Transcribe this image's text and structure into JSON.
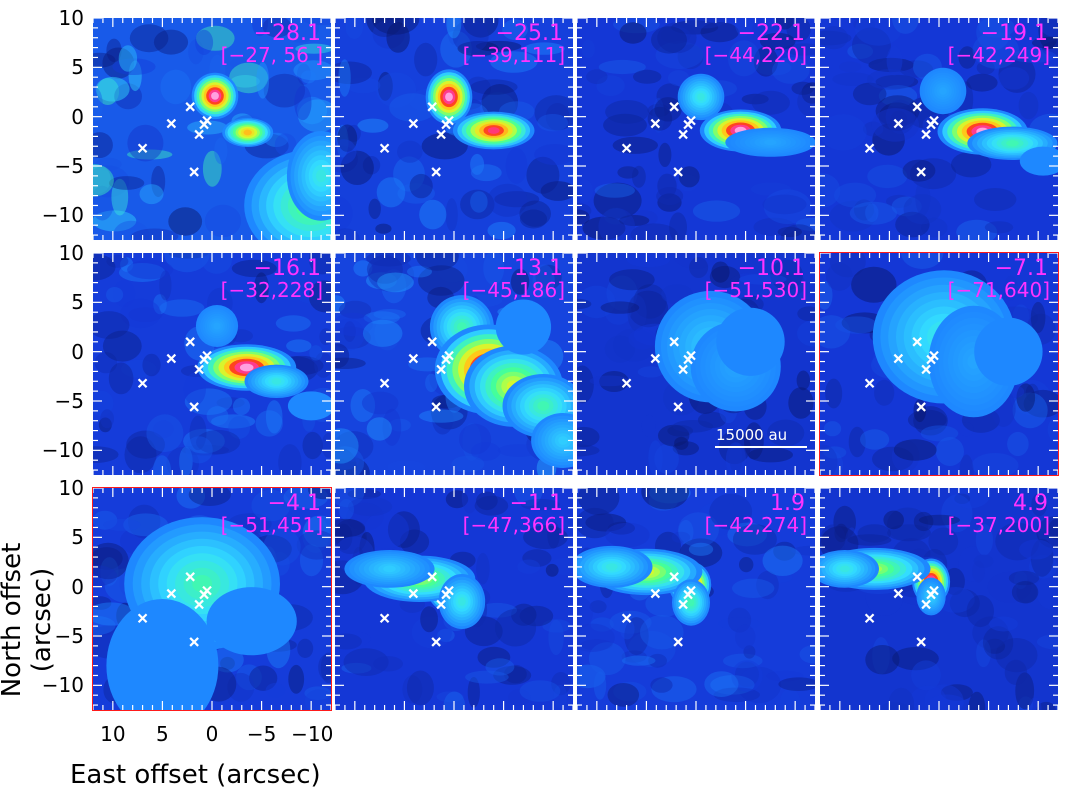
{
  "chart_data": {
    "type": "heatmap",
    "description_layout": "3x4 grid of channel maps",
    "axes": {
      "ylabel": "North offset (arcsec)",
      "xlabel": "East offset (arcsec)",
      "xlim": [
        12,
        -12
      ],
      "ylim": [
        -12.5,
        10
      ],
      "yticks": [
        "10",
        "5",
        "0",
        "−5",
        "−10",
        "10",
        "5",
        "0",
        "−5",
        "−10",
        "10",
        "5",
        "0",
        "−5",
        "−10"
      ],
      "xticks": [
        "10",
        "5",
        "0",
        "−5",
        "−10"
      ]
    },
    "scale_bar": "15000 au",
    "colormap": [
      "#000000",
      "#0a1a7a",
      "#1438d8",
      "#1e88ff",
      "#33ddff",
      "#44ff99",
      "#ccff33",
      "#ffd21a",
      "#ff3020",
      "#ff40c0",
      "#ffffff"
    ],
    "sources": [
      [
        2.2,
        1.0
      ],
      [
        4.1,
        -0.7
      ],
      [
        0.5,
        -0.4
      ],
      [
        0.8,
        -0.8
      ],
      [
        1.3,
        -1.8
      ],
      [
        7.0,
        -3.2
      ],
      [
        1.8,
        -5.6
      ]
    ],
    "panels": [
      {
        "velocity": "−28.1",
        "range": "[−27, 56 ]",
        "highlight": false,
        "features": [
          [
            -0.3,
            2.1,
            1.0,
            1.0,
            1.0
          ],
          [
            -3.6,
            -1.6,
            1.1,
            0.6,
            0.75
          ],
          [
            -10,
            -9,
            3,
            2.5,
            0.55
          ],
          [
            -11,
            -6,
            1.5,
            2,
            0.45
          ]
        ],
        "noise": 0.33
      },
      {
        "velocity": "−25.1",
        "range": "[−39,111]",
        "highlight": false,
        "features": [
          [
            0.5,
            2.0,
            1.0,
            1.2,
            1.0
          ],
          [
            -4.0,
            -1.4,
            1.8,
            0.8,
            0.9
          ]
        ],
        "noise": 0.2
      },
      {
        "velocity": "−22.1",
        "range": "[−44,220]",
        "highlight": false,
        "features": [
          [
            -0.5,
            2.0,
            1.0,
            1.0,
            0.45
          ],
          [
            -4.5,
            -1.4,
            1.8,
            0.9,
            1.0
          ],
          [
            -7.5,
            -2.6,
            2.0,
            0.6,
            0.35
          ]
        ],
        "noise": 0.15
      },
      {
        "velocity": "−19.1",
        "range": "[−42,249]",
        "highlight": false,
        "features": [
          [
            -0.4,
            2.6,
            1.0,
            1.0,
            0.35
          ],
          [
            -4.4,
            -1.5,
            2.0,
            1.0,
            1.0
          ],
          [
            -7.4,
            -2.7,
            2.0,
            0.7,
            0.5
          ],
          [
            -10.5,
            -4.5,
            1.0,
            0.6,
            0.3
          ]
        ],
        "noise": 0.15
      },
      {
        "velocity": "−16.1",
        "range": "[−32,228]",
        "highlight": false,
        "features": [
          [
            -0.5,
            2.6,
            0.9,
            0.9,
            0.35
          ],
          [
            -3.5,
            -1.6,
            2.2,
            1.0,
            1.0
          ],
          [
            -6.5,
            -3.0,
            1.4,
            0.7,
            0.45
          ],
          [
            -10,
            -5.5,
            1.0,
            0.6,
            0.3
          ]
        ],
        "noise": 0.18
      },
      {
        "velocity": "−13.1",
        "range": "[−45,186]",
        "highlight": false,
        "features": [
          [
            -0.8,
            2.5,
            1.4,
            1.4,
            0.5
          ],
          [
            -3.5,
            -1.8,
            2.4,
            2.0,
            1.0
          ],
          [
            -6,
            -3.5,
            2.2,
            1.8,
            0.65
          ],
          [
            -9,
            -5.5,
            1.8,
            1.4,
            0.5
          ],
          [
            -11,
            -9,
            1.4,
            1.2,
            0.4
          ],
          [
            -7,
            2.5,
            1.2,
            1.2,
            0.3
          ]
        ],
        "noise": 0.22
      },
      {
        "velocity": "−10.1",
        "range": "[−51,530]",
        "highlight": false,
        "features": [
          [
            0.6,
            -0.5,
            0.8,
            0.8,
            1.0
          ],
          [
            -1.5,
            0.5,
            2.5,
            2.5,
            0.4
          ],
          [
            -4,
            -1.5,
            2,
            2,
            0.35
          ],
          [
            -5.5,
            1.0,
            1.5,
            1.5,
            0.3
          ]
        ],
        "noise": 0.12
      },
      {
        "velocity": "−7.1",
        "range": "[−71,640]",
        "highlight": true,
        "features": [
          [
            0.6,
            -0.4,
            0.9,
            0.9,
            1.0
          ],
          [
            -0.5,
            1.5,
            3.2,
            3.0,
            0.45
          ],
          [
            -3.5,
            -1.0,
            2.0,
            2.5,
            0.35
          ],
          [
            -7,
            0.0,
            1.5,
            1.5,
            0.3
          ]
        ],
        "noise": 0.15
      },
      {
        "velocity": "−4.1",
        "range": "[−51,451]",
        "highlight": true,
        "features": [
          [
            0.5,
            -0.5,
            1.0,
            1.0,
            1.0
          ],
          [
            1.0,
            0.3,
            3.5,
            3.0,
            0.5
          ],
          [
            -4,
            -3.5,
            2,
            1.5,
            0.3
          ],
          [
            5,
            -8,
            2.5,
            3,
            0.25
          ]
        ],
        "noise": 0.18
      },
      {
        "velocity": "−1.1",
        "range": "[−47,366]",
        "highlight": false,
        "features": [
          [
            0.5,
            -0.4,
            0.9,
            0.9,
            0.95
          ],
          [
            3.5,
            0.8,
            2.5,
            1.0,
            0.6
          ],
          [
            6.5,
            1.8,
            2.0,
            0.8,
            0.4
          ],
          [
            -0.8,
            -1.5,
            1.0,
            1.2,
            0.45
          ]
        ],
        "noise": 0.15
      },
      {
        "velocity": "1.9",
        "range": "[−42,274]",
        "highlight": false,
        "features": [
          [
            0.6,
            0.2,
            0.9,
            1.0,
            1.0
          ],
          [
            5.0,
            1.5,
            2.5,
            1.0,
            0.65
          ],
          [
            8.5,
            2.0,
            1.8,
            0.9,
            0.45
          ],
          [
            0.5,
            -1.6,
            0.8,
            1.0,
            0.5
          ]
        ],
        "noise": 0.18
      },
      {
        "velocity": "4.9",
        "range": "[−37,200]",
        "highlight": false,
        "features": [
          [
            0.8,
            0.5,
            0.8,
            1.0,
            1.0
          ],
          [
            6.5,
            1.8,
            2.5,
            0.9,
            0.6
          ],
          [
            9.5,
            1.8,
            1.5,
            0.8,
            0.45
          ],
          [
            0.8,
            -1.0,
            0.6,
            0.8,
            0.4
          ]
        ],
        "noise": 0.12
      }
    ]
  }
}
